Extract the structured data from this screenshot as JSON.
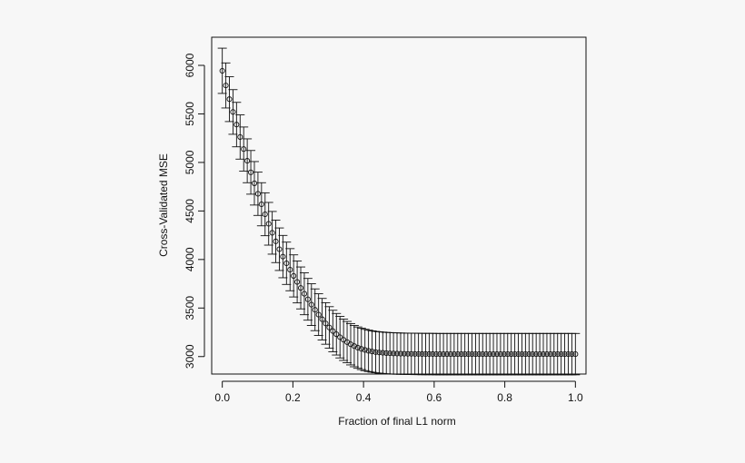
{
  "chart_data": {
    "type": "scatter",
    "title": "",
    "xlabel": "Fraction of final L1 norm",
    "ylabel": "Cross-Validated MSE",
    "xlim": [
      -0.03,
      1.03
    ],
    "ylim": [
      2820,
      6290
    ],
    "xticks": [
      0.0,
      0.2,
      0.4,
      0.6,
      0.8,
      1.0
    ],
    "xtick_labels": [
      "0.0",
      "0.2",
      "0.4",
      "0.6",
      "0.8",
      "1.0"
    ],
    "yticks": [
      3000,
      3500,
      4000,
      4500,
      5000,
      5500,
      6000
    ],
    "ytick_labels": [
      "3000",
      "3500",
      "4000",
      "4500",
      "5000",
      "5500",
      "6000"
    ],
    "grid": false,
    "marker": "open-circle",
    "error_bars": true,
    "series": [
      {
        "x": [
          0.0,
          0.0101,
          0.0202,
          0.0303,
          0.0404,
          0.0505,
          0.0606,
          0.0707,
          0.0808,
          0.0909,
          0.101,
          0.1111,
          0.1212,
          0.1313,
          0.1414,
          0.1515,
          0.1616,
          0.1717,
          0.1818,
          0.1919,
          0.202,
          0.2121,
          0.2222,
          0.2323,
          0.2424,
          0.2525,
          0.2626,
          0.2727,
          0.2828,
          0.2929,
          0.303,
          0.3131,
          0.3232,
          0.3333,
          0.3434,
          0.3535,
          0.3636,
          0.3737,
          0.3838,
          0.3939,
          0.404,
          0.4141,
          0.4242,
          0.4343,
          0.4444,
          0.4545,
          0.4646,
          0.4747,
          0.4848,
          0.4949,
          0.5051,
          0.5152,
          0.5253,
          0.5354,
          0.5455,
          0.5556,
          0.5657,
          0.5758,
          0.5859,
          0.596,
          0.6061,
          0.6162,
          0.6263,
          0.6364,
          0.6465,
          0.6566,
          0.6667,
          0.6768,
          0.6869,
          0.697,
          0.7071,
          0.7172,
          0.7273,
          0.7374,
          0.7475,
          0.7576,
          0.7677,
          0.7778,
          0.7879,
          0.798,
          0.8081,
          0.8182,
          0.8283,
          0.8384,
          0.8485,
          0.8586,
          0.8687,
          0.8788,
          0.8889,
          0.899,
          0.9091,
          0.9192,
          0.9293,
          0.9394,
          0.9495,
          0.9596,
          0.9697,
          0.9798,
          0.9899,
          1.0
        ],
        "y": [
          5944,
          5793,
          5652,
          5520,
          5390,
          5262,
          5138,
          5017,
          4898,
          4785,
          4677,
          4569,
          4466,
          4368,
          4275,
          4187,
          4106,
          4030,
          3961,
          3895,
          3831,
          3769,
          3707,
          3647,
          3590,
          3535,
          3482,
          3432,
          3385,
          3341,
          3300,
          3263,
          3230,
          3200,
          3173,
          3149,
          3127,
          3108,
          3092,
          3079,
          3068,
          3059,
          3052,
          3046,
          3042,
          3039,
          3036,
          3034,
          3032,
          3031,
          3030,
          3029,
          3028,
          3028,
          3027,
          3027,
          3026,
          3026,
          3026,
          3026,
          3025,
          3025,
          3025,
          3025,
          3025,
          3025,
          3025,
          3025,
          3025,
          3025,
          3025,
          3025,
          3025,
          3025,
          3025,
          3025,
          3025,
          3025,
          3025,
          3025,
          3025,
          3025,
          3025,
          3025,
          3025,
          3025,
          3025,
          3025,
          3025,
          3025,
          3025,
          3025,
          3025,
          3025,
          3025,
          3025,
          3025,
          3025,
          3025,
          3025
        ],
        "err": [
          233,
          232,
          231,
          230,
          229,
          228,
          227,
          226,
          225,
          224,
          223,
          222,
          221,
          220,
          220,
          219,
          219,
          218,
          218,
          217,
          217,
          216,
          216,
          216,
          215,
          215,
          215,
          215,
          214,
          214,
          214,
          214,
          214,
          214,
          213,
          213,
          213,
          213,
          213,
          213,
          213,
          213,
          213,
          213,
          213,
          213,
          213,
          213,
          213,
          213,
          213,
          213,
          213,
          213,
          213,
          213,
          213,
          213,
          213,
          213,
          213,
          213,
          213,
          213,
          213,
          213,
          213,
          213,
          213,
          213,
          213,
          213,
          213,
          213,
          213,
          213,
          213,
          213,
          213,
          213,
          213,
          213,
          213,
          213,
          213,
          213,
          213,
          213,
          213,
          213,
          213,
          213,
          213,
          213,
          213,
          213,
          213,
          213,
          213,
          213
        ]
      }
    ]
  }
}
